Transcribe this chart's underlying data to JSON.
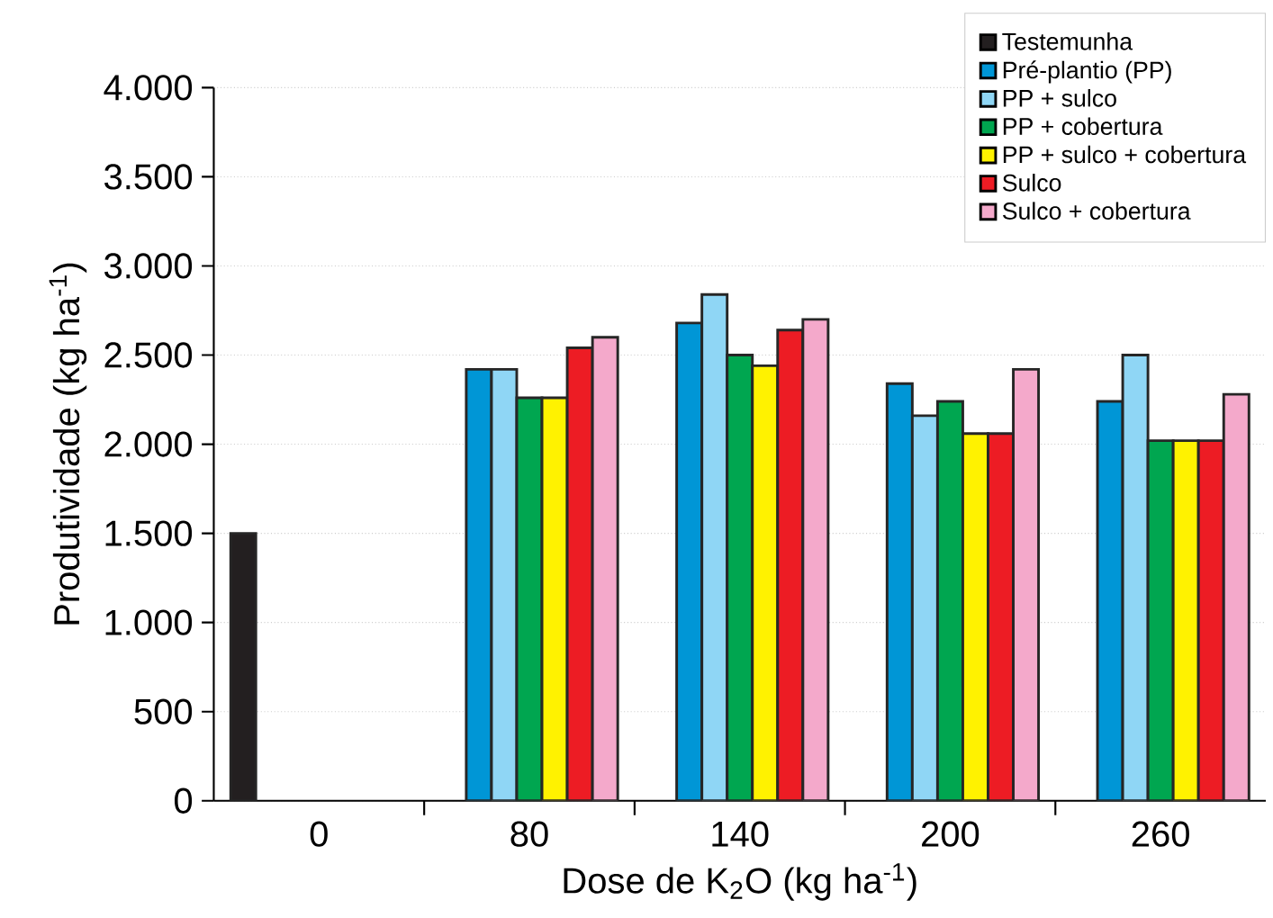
{
  "chart_data": {
    "type": "bar",
    "xlabel": "Dose de K$_{2}$O (kg ha$^{-1}$)",
    "ylabel": "Produtividade (kg ha$^{-1}$)",
    "categories": [
      "0",
      "80",
      "140",
      "200",
      "260"
    ],
    "series": [
      {
        "name": "Testemunha",
        "color": "#231f20",
        "values": [
          1500,
          null,
          null,
          null,
          null
        ]
      },
      {
        "name": "Pré-plantio (PP)",
        "color": "#0096d6",
        "values": [
          null,
          2420,
          2680,
          2340,
          2240
        ]
      },
      {
        "name": "PP + sulco",
        "color": "#8fd6f5",
        "values": [
          null,
          2420,
          2840,
          2160,
          2500
        ]
      },
      {
        "name": "PP + cobertura",
        "color": "#00a650",
        "values": [
          null,
          2260,
          2500,
          2240,
          2020
        ]
      },
      {
        "name": "PP + sulco + cobertura",
        "color": "#fff200",
        "values": [
          null,
          2260,
          2440,
          2060,
          2020
        ]
      },
      {
        "name": "Sulco",
        "color": "#ed1c24",
        "values": [
          null,
          2540,
          2640,
          2060,
          2020
        ]
      },
      {
        "name": "Sulco + cobertura",
        "color": "#f4a9cb",
        "values": [
          null,
          2600,
          2700,
          2420,
          2280
        ]
      }
    ],
    "ylim": [
      0,
      4000
    ],
    "yticks": [
      0,
      500,
      {
        "value": 1000,
        "label": "1.000"
      },
      {
        "value": 1500,
        "label": "1.500"
      },
      {
        "value": 2000,
        "label": "2.000"
      },
      {
        "value": 2500,
        "label": "2.500"
      },
      {
        "value": 3000,
        "label": "3.000"
      },
      {
        "value": 3500,
        "label": "3.500"
      },
      {
        "value": 4000,
        "label": "4.000"
      }
    ],
    "grid": "y",
    "legend": "top right"
  }
}
